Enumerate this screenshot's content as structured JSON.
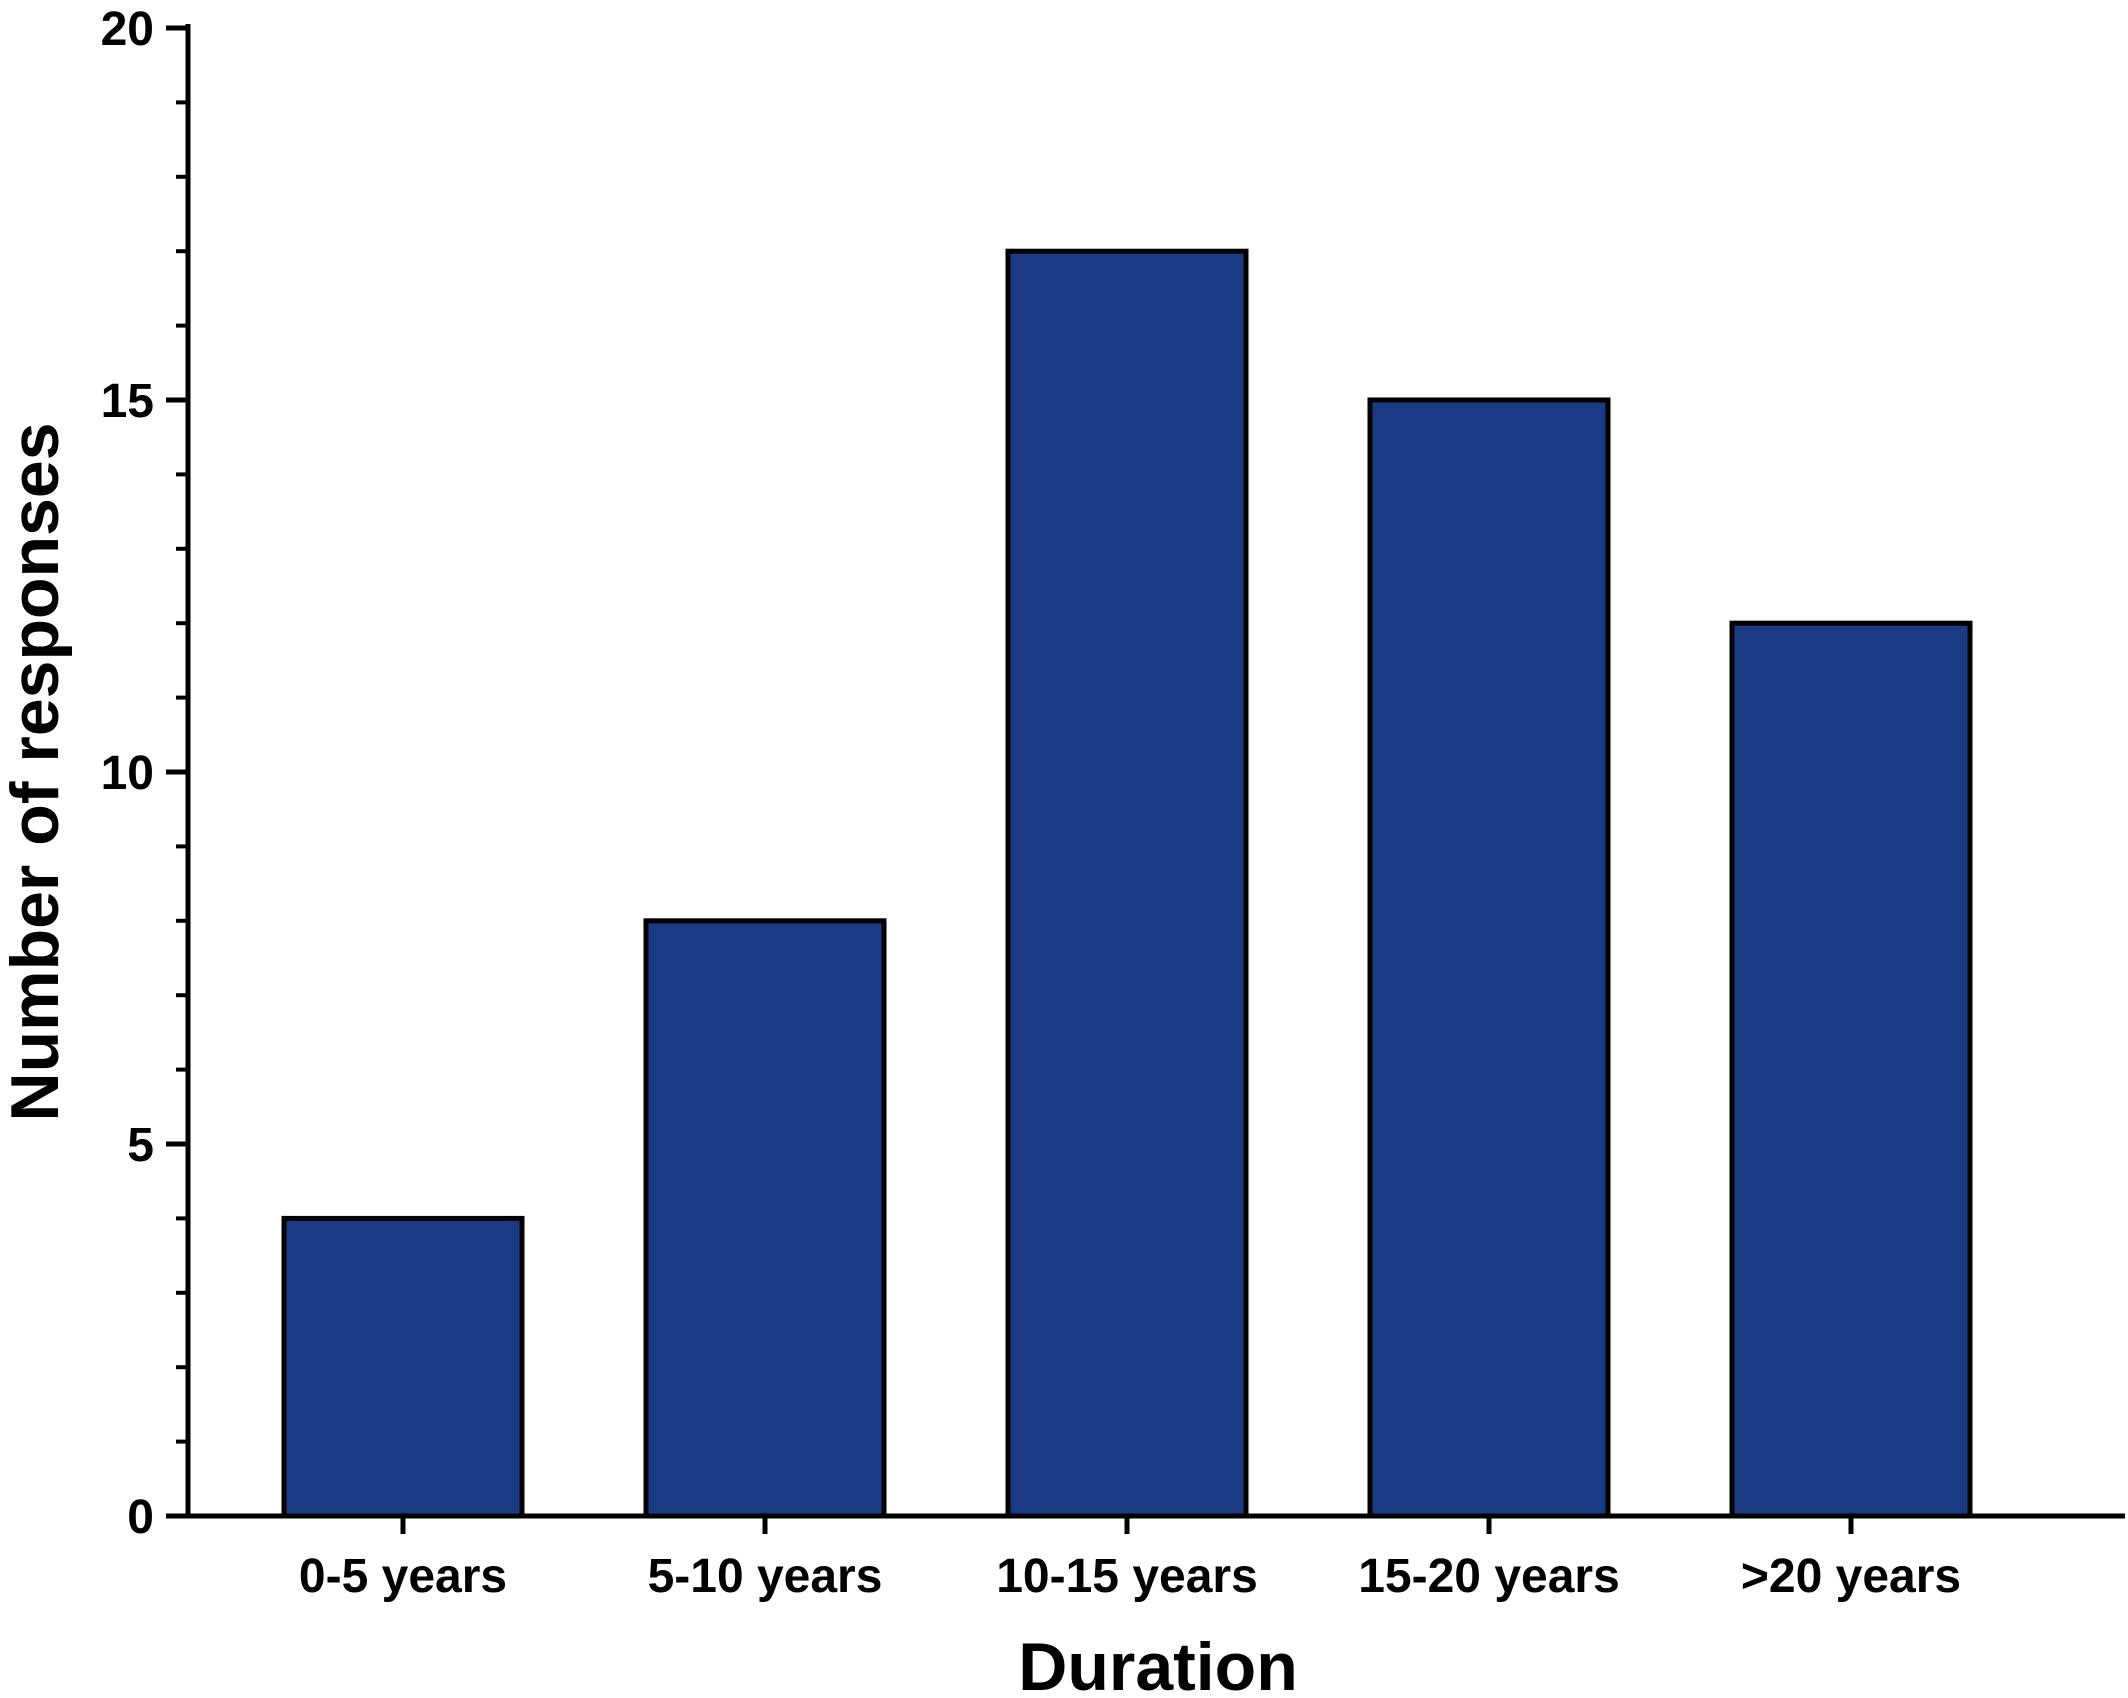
{
  "chart_data": {
    "type": "bar",
    "categories": [
      "0-5 years",
      "5-10 years",
      "10-15 years",
      "15-20 years",
      ">20 years"
    ],
    "values": [
      4,
      8,
      17,
      15,
      12
    ],
    "title": "",
    "xlabel": "Duration",
    "ylabel": "Number of responses",
    "ylim": [
      0,
      20
    ],
    "yticks": [
      0,
      5,
      10,
      15,
      20
    ],
    "minor_tick_step": 1,
    "grid": false,
    "legend": "none",
    "colors": {
      "bar_fill": "#1b3a84",
      "bar_stroke": "#000000",
      "axis": "#000000",
      "background": "#ffffff"
    }
  }
}
